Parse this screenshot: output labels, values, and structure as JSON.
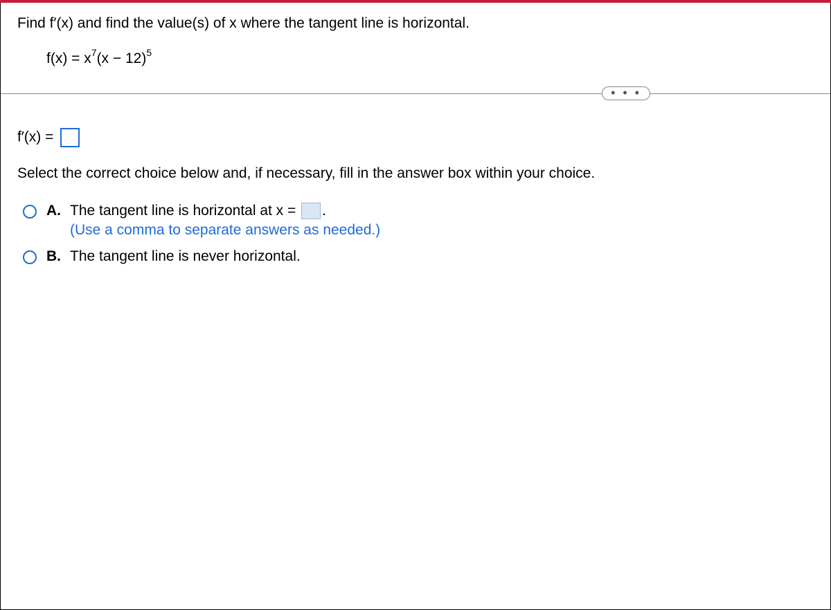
{
  "question": {
    "prompt": "Find f′(x) and find the value(s) of x where the tangent line is horizontal.",
    "formula_prefix": "f(x) = x",
    "formula_exp1": "7",
    "formula_mid": "(x − 12)",
    "formula_exp2": "5"
  },
  "ellipsis": "• • •",
  "answer": {
    "fprime_label": "f′(x) =",
    "instruction": "Select the correct choice below and, if necessary, fill in the answer box within your choice."
  },
  "choices": {
    "a": {
      "label": "A.",
      "text_before": "The tangent line is horizontal at x =",
      "text_after": ".",
      "hint": "(Use a comma to separate answers as needed.)"
    },
    "b": {
      "label": "B.",
      "text": "The tangent line is never horizontal."
    }
  },
  "colors": {
    "top_bar": "#c41e3a",
    "accent": "#1f6bd6",
    "fill_box": "#d9e6f5"
  }
}
